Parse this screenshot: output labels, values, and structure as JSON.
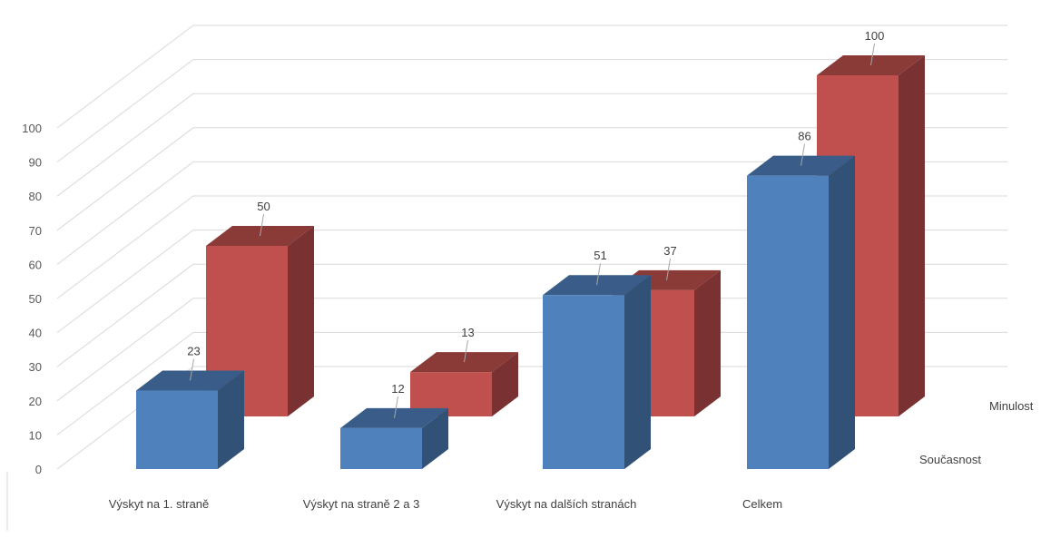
{
  "chart_data": {
    "type": "bar",
    "title": "",
    "xlabel": "",
    "ylabel": "",
    "categories": [
      "Výskyt na 1. straně",
      "Výskyt na straně 2 a 3",
      "Výskyt na dalších stranách",
      "Celkem"
    ],
    "series": [
      {
        "name": "Současnost",
        "values": [
          23,
          12,
          51,
          86
        ],
        "color": "#4f81bd"
      },
      {
        "name": "Minulost",
        "values": [
          50,
          13,
          37,
          100
        ],
        "color": "#c0504d"
      }
    ],
    "y_ticks": [
      "0",
      "10",
      "20",
      "30",
      "40",
      "50",
      "60",
      "70",
      "80",
      "90",
      "100"
    ],
    "ylim": [
      0,
      100
    ],
    "grid": true,
    "legend": "series labels on depth axis (right)",
    "style": "3d-column"
  }
}
